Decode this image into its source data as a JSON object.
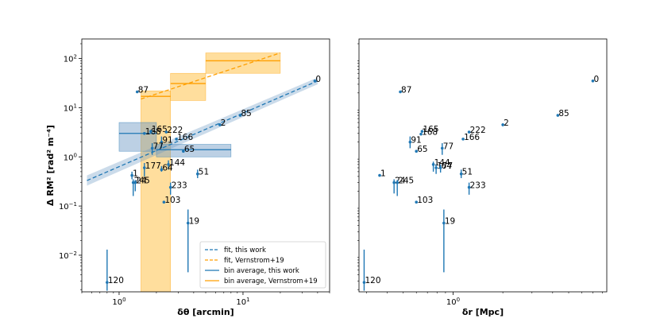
{
  "colors": {
    "blue": "#1f77b4",
    "orange": "#ff9f00",
    "blue_band": "#6a97c4",
    "orange_band": "#ffc34d"
  },
  "chart_data": [
    {
      "type": "scatter",
      "xlabel": "δθ [arcmin]",
      "ylabel": "Δ RM² [rad² m⁻⁴]",
      "xscale": "log",
      "yscale": "log",
      "xlim": [
        0.5,
        50
      ],
      "ylim": [
        0.0018,
        250
      ],
      "grid": false,
      "xticks": [
        {
          "v": 1,
          "base": "10",
          "exp": "0"
        },
        {
          "v": 10,
          "base": "10",
          "exp": "1"
        }
      ],
      "yticks": [
        {
          "v": 0.01,
          "base": "10",
          "exp": "−2"
        },
        {
          "v": 0.1,
          "base": "10",
          "exp": "−1"
        },
        {
          "v": 1,
          "base": "10",
          "exp": "0"
        },
        {
          "v": 10,
          "base": "10",
          "exp": "1"
        },
        {
          "v": 100,
          "base": "10",
          "exp": "2"
        }
      ],
      "legend_position": "lower-right",
      "legend": [
        {
          "label": "fit, this work",
          "style": "dashed",
          "color": "blue"
        },
        {
          "label": "fit, Vernstrom+19",
          "style": "dashed",
          "color": "orange"
        },
        {
          "label": "bin average, this work",
          "style": "solid",
          "color": "blue"
        },
        {
          "label": "bin average, Vernstrom+19",
          "style": "solid",
          "color": "orange"
        }
      ],
      "points": [
        {
          "label": "0",
          "x": 38,
          "y": 35,
          "lo": 35,
          "hi": 35
        },
        {
          "label": "87",
          "x": 1.4,
          "y": 21,
          "lo": 21,
          "hi": 21
        },
        {
          "label": "85",
          "x": 9.5,
          "y": 7.0,
          "lo": 7.0,
          "hi": 7.0
        },
        {
          "label": "2",
          "x": 6.5,
          "y": 4.5,
          "lo": 4.2,
          "hi": 4.8
        },
        {
          "label": "168",
          "x": 1.6,
          "y": 3.0,
          "lo": 3.0,
          "hi": 3.0
        },
        {
          "label": "165",
          "x": 1.8,
          "y": 3.3,
          "lo": 3.3,
          "hi": 3.3
        },
        {
          "label": "222",
          "x": 2.4,
          "y": 3.2,
          "lo": 3.2,
          "hi": 3.2
        },
        {
          "label": "166",
          "x": 2.9,
          "y": 2.3,
          "lo": 2.3,
          "hi": 2.3
        },
        {
          "label": "91",
          "x": 2.2,
          "y": 2.0,
          "lo": 1.5,
          "hi": 2.6
        },
        {
          "label": "77",
          "x": 1.85,
          "y": 1.5,
          "lo": 1.1,
          "hi": 1.9
        },
        {
          "label": "65",
          "x": 3.3,
          "y": 1.3,
          "lo": 1.3,
          "hi": 1.3
        },
        {
          "label": "144",
          "x": 2.5,
          "y": 0.7,
          "lo": 0.55,
          "hi": 0.85
        },
        {
          "label": "177",
          "x": 1.6,
          "y": 0.6,
          "lo": 0.4,
          "hi": 0.75
        },
        {
          "label": "64",
          "x": 2.2,
          "y": 0.55,
          "lo": 0.5,
          "hi": 0.65
        },
        {
          "label": "51",
          "x": 4.3,
          "y": 0.45,
          "lo": 0.37,
          "hi": 0.55
        },
        {
          "label": "1",
          "x": 1.27,
          "y": 0.42,
          "lo": 0.35,
          "hi": 0.5
        },
        {
          "label": "245",
          "x": 1.3,
          "y": 0.3,
          "lo": 0.16,
          "hi": 0.35
        },
        {
          "label": "24",
          "x": 1.35,
          "y": 0.3,
          "lo": 0.2,
          "hi": 0.34
        },
        {
          "label": "233",
          "x": 2.6,
          "y": 0.24,
          "lo": 0.17,
          "hi": 0.3
        },
        {
          "label": "103",
          "x": 2.3,
          "y": 0.12,
          "lo": 0.12,
          "hi": 0.12
        },
        {
          "label": "19",
          "x": 3.6,
          "y": 0.045,
          "lo": 0.0045,
          "hi": 0.085
        },
        {
          "label": "120",
          "x": 0.8,
          "y": 0.0028,
          "lo": 0.0019,
          "hi": 0.013
        }
      ],
      "fit_this_work": {
        "x": [
          0.55,
          40
        ],
        "y": [
          0.33,
          35
        ],
        "band_lo": [
          0.26,
          30
        ],
        "band_hi": [
          0.42,
          41
        ]
      },
      "fit_vernstrom": {
        "x": [
          1.5,
          20
        ],
        "y": [
          15,
          130
        ]
      },
      "bins_this_work": [
        {
          "x0": 1.0,
          "x1": 2.0,
          "y": 3.0,
          "y0": 1.3,
          "y1": 5.0
        },
        {
          "x0": 2.0,
          "x1": 8.0,
          "y": 1.4,
          "y0": 1.0,
          "y1": 1.8
        }
      ],
      "bins_vernstrom": [
        {
          "x0": 1.5,
          "x1": 2.6,
          "y": 17,
          "y0": 0.0018,
          "y1": 22
        },
        {
          "x0": 2.6,
          "x1": 5.0,
          "y": 31,
          "y0": 14,
          "y1": 50
        },
        {
          "x0": 5.0,
          "x1": 20,
          "y": 90,
          "y0": 50,
          "y1": 130
        }
      ]
    },
    {
      "type": "scatter",
      "xlabel": "δr [Mpc]",
      "ylabel": "",
      "xscale": "log",
      "yscale": "log",
      "xlim": [
        0.27,
        8.5
      ],
      "ylim": [
        0.0018,
        250
      ],
      "grid": false,
      "xticks": [
        {
          "v": 1,
          "base": "10",
          "exp": "0"
        }
      ],
      "yticks": [],
      "points": [
        {
          "label": "0",
          "x": 7.0,
          "y": 35,
          "lo": 35,
          "hi": 35
        },
        {
          "label": "87",
          "x": 0.48,
          "y": 21,
          "lo": 21,
          "hi": 21
        },
        {
          "label": "85",
          "x": 4.3,
          "y": 7.0,
          "lo": 7.0,
          "hi": 7.0
        },
        {
          "label": "2",
          "x": 2.0,
          "y": 4.5,
          "lo": 4.2,
          "hi": 4.8
        },
        {
          "label": "165",
          "x": 0.65,
          "y": 3.3,
          "lo": 3.3,
          "hi": 3.3
        },
        {
          "label": "168",
          "x": 0.64,
          "y": 2.9,
          "lo": 2.9,
          "hi": 2.9
        },
        {
          "label": "222",
          "x": 1.25,
          "y": 3.2,
          "lo": 3.2,
          "hi": 3.2
        },
        {
          "label": "166",
          "x": 1.15,
          "y": 2.3,
          "lo": 2.3,
          "hi": 2.3
        },
        {
          "label": "91",
          "x": 0.55,
          "y": 2.0,
          "lo": 1.5,
          "hi": 2.6
        },
        {
          "label": "77",
          "x": 0.86,
          "y": 1.5,
          "lo": 1.1,
          "hi": 1.9
        },
        {
          "label": "65",
          "x": 0.6,
          "y": 1.3,
          "lo": 1.3,
          "hi": 1.3
        },
        {
          "label": "144",
          "x": 0.76,
          "y": 0.7,
          "lo": 0.5,
          "hi": 0.8
        },
        {
          "label": "177",
          "x": 0.79,
          "y": 0.6,
          "lo": 0.45,
          "hi": 0.7
        },
        {
          "label": "64",
          "x": 0.84,
          "y": 0.6,
          "lo": 0.48,
          "hi": 0.7
        },
        {
          "label": "51",
          "x": 1.12,
          "y": 0.45,
          "lo": 0.37,
          "hi": 0.55
        },
        {
          "label": "1",
          "x": 0.36,
          "y": 0.42,
          "lo": 0.42,
          "hi": 0.42
        },
        {
          "label": "24",
          "x": 0.44,
          "y": 0.3,
          "lo": 0.18,
          "hi": 0.35
        },
        {
          "label": "245",
          "x": 0.46,
          "y": 0.3,
          "lo": 0.16,
          "hi": 0.34
        },
        {
          "label": "233",
          "x": 1.25,
          "y": 0.24,
          "lo": 0.17,
          "hi": 0.3
        },
        {
          "label": "103",
          "x": 0.6,
          "y": 0.12,
          "lo": 0.12,
          "hi": 0.12
        },
        {
          "label": "19",
          "x": 0.88,
          "y": 0.045,
          "lo": 0.0045,
          "hi": 0.085
        },
        {
          "label": "120",
          "x": 0.29,
          "y": 0.0028,
          "lo": 0.0019,
          "hi": 0.013
        }
      ]
    }
  ]
}
